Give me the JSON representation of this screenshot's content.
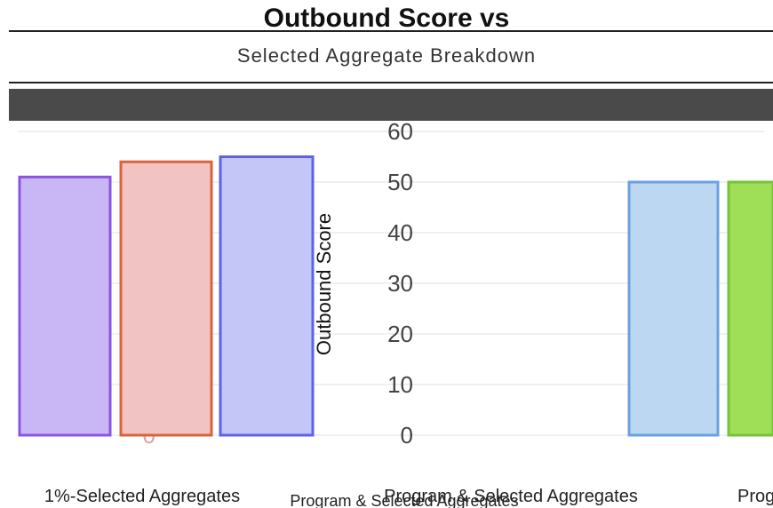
{
  "chart_data": {
    "type": "bar",
    "title": "Outbound Score vs",
    "subtitle": "Selected Aggregate Breakdown",
    "ylabel": "Outbound Score",
    "ylim": [
      0,
      60
    ],
    "yticks": [
      0,
      10,
      20,
      30,
      40,
      50,
      60
    ],
    "categories": [
      "Program",
      "Selected Aggregates",
      "Program & Selected Aggregates",
      "Program & Selected Aggregates",
      "Program"
    ],
    "values": [
      51,
      54,
      55,
      50,
      50
    ],
    "colors": [
      "#c9b6f5",
      "#f2c3c3",
      "#c3c6f7",
      "#bcd7f2",
      "#9fdf58"
    ],
    "edge_colors": [
      "#8a55e0",
      "#d9643a",
      "#5c63e8",
      "#6aa2e0",
      "#76c23a"
    ],
    "xlabels": [
      "1%-Selected Aggregates",
      "Program & Selected Aggregates",
      "Program"
    ],
    "footnote": "Program & Selected Aggregates",
    "grid": true
  }
}
